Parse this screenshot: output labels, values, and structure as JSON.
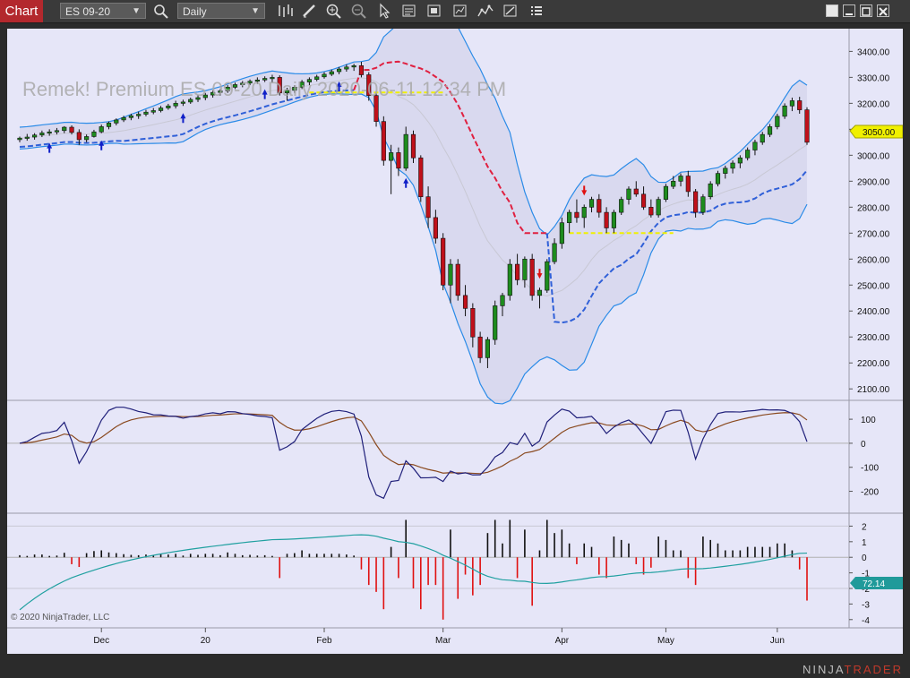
{
  "toolbar": {
    "tab_label": "Chart",
    "instrument": "ES 09-20",
    "period": "Daily",
    "icons": [
      "search-icon",
      "bar-type-icon",
      "pencil-icon",
      "zoom-in-icon",
      "zoom-out-icon",
      "pointer-icon",
      "data-box-icon",
      "properties-icon",
      "strategies-icon",
      "indicators-icon",
      "drawing-tools-icon",
      "templates-icon"
    ],
    "window_icons": [
      "tile-icon",
      "minimize-icon",
      "maximize-icon",
      "close-icon"
    ]
  },
  "chart": {
    "watermark": "Remek!  Premium  ES 09-20  Daily  2020-06-11 12:34 PM",
    "copyright": "© 2020 NinjaTrader, LLC",
    "footer_logo_prefix": "NINJA",
    "footer_logo_suffix": "TRADER"
  },
  "chart_data": [
    {
      "type": "candlestick",
      "panel": "price",
      "y_ticks": [
        "3400.00",
        "3300.00",
        "3200.00",
        "3100.00",
        "3000.00",
        "2900.00",
        "2800.00",
        "2700.00",
        "2600.00",
        "2500.00",
        "2400.00",
        "2300.00",
        "2200.00",
        "2100.00"
      ],
      "ylim": [
        2080,
        3460
      ],
      "current_price_label": "3050.00",
      "x_labels": [
        "Dec",
        "20",
        "Feb",
        "Mar",
        "Apr",
        "May",
        "Jun"
      ],
      "colors": {
        "up": "#1e8c1e",
        "down": "#c0101a",
        "upper_band": "#2a8be8",
        "trail_up": "#3060d8",
        "trail_down": "#e02040",
        "level": "#f0f000",
        "price_label_bg": "#f0f000"
      },
      "candles_ohlc": [
        [
          3060,
          3072,
          3050,
          3066
        ],
        [
          3066,
          3082,
          3056,
          3070
        ],
        [
          3070,
          3085,
          3060,
          3078
        ],
        [
          3078,
          3095,
          3070,
          3086
        ],
        [
          3086,
          3100,
          3075,
          3090
        ],
        [
          3090,
          3105,
          3080,
          3095
        ],
        [
          3095,
          3112,
          3085,
          3108
        ],
        [
          3108,
          3115,
          3080,
          3088
        ],
        [
          3088,
          3100,
          3040,
          3060
        ],
        [
          3060,
          3080,
          3050,
          3072
        ],
        [
          3072,
          3098,
          3068,
          3090
        ],
        [
          3090,
          3118,
          3085,
          3110
        ],
        [
          3110,
          3130,
          3100,
          3124
        ],
        [
          3124,
          3142,
          3115,
          3136
        ],
        [
          3136,
          3152,
          3128,
          3145
        ],
        [
          3145,
          3160,
          3135,
          3152
        ],
        [
          3152,
          3168,
          3140,
          3158
        ],
        [
          3158,
          3175,
          3150,
          3166
        ],
        [
          3166,
          3182,
          3158,
          3172
        ],
        [
          3172,
          3190,
          3165,
          3182
        ],
        [
          3182,
          3198,
          3175,
          3190
        ],
        [
          3190,
          3210,
          3180,
          3200
        ],
        [
          3200,
          3214,
          3190,
          3205
        ],
        [
          3205,
          3222,
          3198,
          3215
        ],
        [
          3215,
          3232,
          3205,
          3222
        ],
        [
          3222,
          3240,
          3212,
          3232
        ],
        [
          3232,
          3250,
          3222,
          3242
        ],
        [
          3242,
          3255,
          3230,
          3248
        ],
        [
          3248,
          3270,
          3240,
          3262
        ],
        [
          3262,
          3280,
          3255,
          3272
        ],
        [
          3272,
          3286,
          3262,
          3278
        ],
        [
          3278,
          3292,
          3270,
          3285
        ],
        [
          3285,
          3300,
          3275,
          3290
        ],
        [
          3290,
          3304,
          3282,
          3296
        ],
        [
          3296,
          3310,
          3280,
          3300
        ],
        [
          3300,
          3308,
          3230,
          3240
        ],
        [
          3240,
          3260,
          3210,
          3250
        ],
        [
          3250,
          3270,
          3240,
          3262
        ],
        [
          3262,
          3290,
          3255,
          3282
        ],
        [
          3282,
          3300,
          3270,
          3292
        ],
        [
          3292,
          3310,
          3285,
          3302
        ],
        [
          3302,
          3320,
          3295,
          3312
        ],
        [
          3312,
          3330,
          3305,
          3322
        ],
        [
          3322,
          3340,
          3312,
          3332
        ],
        [
          3332,
          3350,
          3322,
          3340
        ],
        [
          3340,
          3352,
          3325,
          3345
        ],
        [
          3345,
          3360,
          3300,
          3310
        ],
        [
          3310,
          3320,
          3210,
          3230
        ],
        [
          3230,
          3240,
          3110,
          3130
        ],
        [
          3130,
          3150,
          2960,
          2980
        ],
        [
          2980,
          3040,
          2850,
          3010
        ],
        [
          3010,
          3030,
          2920,
          2950
        ],
        [
          2950,
          3110,
          2940,
          3080
        ],
        [
          3080,
          3095,
          2970,
          2990
        ],
        [
          2990,
          3000,
          2820,
          2840
        ],
        [
          2840,
          2880,
          2720,
          2760
        ],
        [
          2760,
          2790,
          2660,
          2680
        ],
        [
          2680,
          2700,
          2480,
          2500
        ],
        [
          2500,
          2600,
          2430,
          2580
        ],
        [
          2580,
          2600,
          2440,
          2460
        ],
        [
          2460,
          2500,
          2380,
          2410
        ],
        [
          2410,
          2430,
          2260,
          2300
        ],
        [
          2300,
          2320,
          2200,
          2220
        ],
        [
          2220,
          2300,
          2180,
          2290
        ],
        [
          2290,
          2440,
          2270,
          2420
        ],
        [
          2420,
          2470,
          2380,
          2460
        ],
        [
          2460,
          2600,
          2440,
          2580
        ],
        [
          2580,
          2620,
          2500,
          2520
        ],
        [
          2520,
          2610,
          2490,
          2600
        ],
        [
          2600,
          2620,
          2440,
          2460
        ],
        [
          2460,
          2490,
          2410,
          2480
        ],
        [
          2480,
          2600,
          2470,
          2590
        ],
        [
          2590,
          2680,
          2580,
          2660
        ],
        [
          2660,
          2760,
          2640,
          2740
        ],
        [
          2740,
          2790,
          2700,
          2780
        ],
        [
          2780,
          2830,
          2740,
          2760
        ],
        [
          2760,
          2810,
          2720,
          2800
        ],
        [
          2800,
          2840,
          2780,
          2830
        ],
        [
          2830,
          2850,
          2760,
          2780
        ],
        [
          2780,
          2800,
          2700,
          2720
        ],
        [
          2720,
          2790,
          2700,
          2780
        ],
        [
          2780,
          2840,
          2770,
          2830
        ],
        [
          2830,
          2880,
          2810,
          2870
        ],
        [
          2870,
          2900,
          2840,
          2850
        ],
        [
          2850,
          2880,
          2790,
          2800
        ],
        [
          2800,
          2830,
          2760,
          2770
        ],
        [
          2770,
          2840,
          2760,
          2830
        ],
        [
          2830,
          2890,
          2820,
          2880
        ],
        [
          2880,
          2920,
          2870,
          2900
        ],
        [
          2900,
          2930,
          2880,
          2920
        ],
        [
          2920,
          2940,
          2840,
          2860
        ],
        [
          2860,
          2870,
          2760,
          2780
        ],
        [
          2780,
          2850,
          2770,
          2840
        ],
        [
          2840,
          2900,
          2830,
          2890
        ],
        [
          2890,
          2940,
          2880,
          2930
        ],
        [
          2930,
          2960,
          2910,
          2950
        ],
        [
          2950,
          2980,
          2930,
          2970
        ],
        [
          2970,
          3000,
          2950,
          2990
        ],
        [
          2990,
          3030,
          2980,
          3020
        ],
        [
          3020,
          3060,
          3000,
          3050
        ],
        [
          3050,
          3090,
          3040,
          3080
        ],
        [
          3080,
          3120,
          3070,
          3110
        ],
        [
          3110,
          3160,
          3100,
          3150
        ],
        [
          3150,
          3200,
          3140,
          3190
        ],
        [
          3190,
          3222,
          3170,
          3210
        ],
        [
          3210,
          3225,
          3160,
          3175
        ],
        [
          3175,
          3185,
          3040,
          3050
        ]
      ]
    },
    {
      "type": "line",
      "panel": "oscillator",
      "y_ticks": [
        "100",
        "0",
        "-100",
        "-200"
      ],
      "ylim": [
        -280,
        160
      ],
      "colors": {
        "fast": "#20207a",
        "slow": "#8a4a20",
        "zero": "#b0b0b0"
      }
    },
    {
      "type": "bar",
      "panel": "volume-oscillator",
      "y_ticks": [
        "2",
        "1",
        "0",
        "-1",
        "-2",
        "-3",
        "-4"
      ],
      "ylim": [
        -4.3,
        2.6
      ],
      "current_value_label": "72.14",
      "colors": {
        "up": "#101010",
        "down": "#e01010",
        "line": "#20a0a0",
        "value_label_bg": "#209a9a"
      }
    }
  ]
}
